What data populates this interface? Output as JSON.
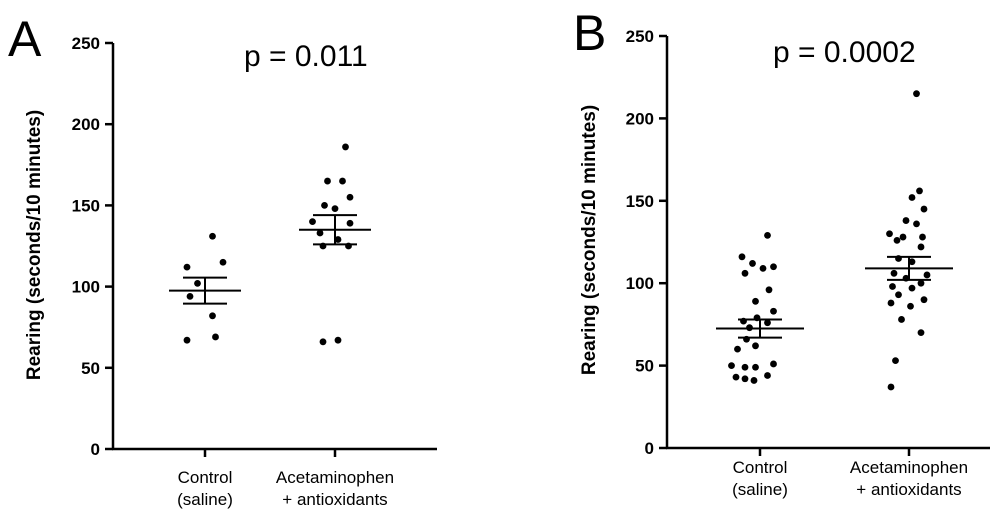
{
  "chart_data": [
    {
      "type": "scatter",
      "panel_label": "A",
      "annotation": "p = 0.011",
      "ylabel": "Rearing (seconds/10 minutes)",
      "ylim": [
        0,
        250
      ],
      "yticks": [
        0,
        50,
        100,
        150,
        200,
        250
      ],
      "categories": [
        [
          "Control",
          "(saline)"
        ],
        [
          "Acetaminophen",
          "+ antioxidants"
        ]
      ],
      "series": [
        {
          "points": [
            {
              "x": 0.05,
              "y": 131
            },
            {
              "x": -0.12,
              "y": 112
            },
            {
              "x": 0.12,
              "y": 115
            },
            {
              "x": -0.05,
              "y": 102
            },
            {
              "x": -0.1,
              "y": 94
            },
            {
              "x": 0.05,
              "y": 82
            },
            {
              "x": -0.12,
              "y": 67
            },
            {
              "x": 0.07,
              "y": 69
            }
          ],
          "mean": 97.5,
          "sem_low": 89.5,
          "sem_high": 105.5
        },
        {
          "points": [
            {
              "x": 0.07,
              "y": 186
            },
            {
              "x": -0.05,
              "y": 165
            },
            {
              "x": 0.05,
              "y": 165
            },
            {
              "x": 0.1,
              "y": 155
            },
            {
              "x": -0.07,
              "y": 150
            },
            {
              "x": 0.0,
              "y": 148
            },
            {
              "x": -0.15,
              "y": 140
            },
            {
              "x": 0.1,
              "y": 139
            },
            {
              "x": -0.1,
              "y": 133
            },
            {
              "x": 0.02,
              "y": 129
            },
            {
              "x": -0.08,
              "y": 125
            },
            {
              "x": 0.09,
              "y": 125
            },
            {
              "x": -0.08,
              "y": 66
            },
            {
              "x": 0.02,
              "y": 67
            }
          ],
          "mean": 135,
          "sem_low": 126,
          "sem_high": 144
        }
      ]
    },
    {
      "type": "scatter",
      "panel_label": "B",
      "annotation": "p = 0.0002",
      "ylabel": "Rearing (seconds/10 minutes)",
      "ylim": [
        0,
        250
      ],
      "yticks": [
        0,
        50,
        100,
        150,
        200,
        250
      ],
      "categories": [
        [
          "Control",
          "(saline)"
        ],
        [
          "Acetaminophen",
          "+ antioxidants"
        ]
      ],
      "series": [
        {
          "points": [
            {
              "x": 0.05,
              "y": 129
            },
            {
              "x": -0.12,
              "y": 116
            },
            {
              "x": -0.05,
              "y": 112
            },
            {
              "x": 0.09,
              "y": 110
            },
            {
              "x": 0.02,
              "y": 109
            },
            {
              "x": -0.1,
              "y": 106
            },
            {
              "x": 0.06,
              "y": 96
            },
            {
              "x": -0.03,
              "y": 89
            },
            {
              "x": 0.09,
              "y": 83
            },
            {
              "x": -0.02,
              "y": 79
            },
            {
              "x": -0.11,
              "y": 77
            },
            {
              "x": 0.05,
              "y": 76
            },
            {
              "x": -0.07,
              "y": 73
            },
            {
              "x": -0.09,
              "y": 66
            },
            {
              "x": -0.03,
              "y": 62
            },
            {
              "x": -0.15,
              "y": 60
            },
            {
              "x": -0.19,
              "y": 50
            },
            {
              "x": -0.1,
              "y": 49
            },
            {
              "x": -0.03,
              "y": 49
            },
            {
              "x": 0.09,
              "y": 51
            },
            {
              "x": -0.16,
              "y": 43
            },
            {
              "x": -0.1,
              "y": 42
            },
            {
              "x": 0.05,
              "y": 44
            },
            {
              "x": -0.04,
              "y": 41
            }
          ],
          "mean": 72.5,
          "sem_low": 67,
          "sem_high": 78
        },
        {
          "points": [
            {
              "x": 0.05,
              "y": 215
            },
            {
              "x": 0.07,
              "y": 156
            },
            {
              "x": 0.02,
              "y": 152
            },
            {
              "x": 0.1,
              "y": 145
            },
            {
              "x": -0.02,
              "y": 138
            },
            {
              "x": 0.05,
              "y": 136
            },
            {
              "x": -0.13,
              "y": 130
            },
            {
              "x": -0.04,
              "y": 128
            },
            {
              "x": 0.09,
              "y": 128
            },
            {
              "x": -0.08,
              "y": 126
            },
            {
              "x": 0.08,
              "y": 122
            },
            {
              "x": -0.07,
              "y": 115
            },
            {
              "x": 0.02,
              "y": 113
            },
            {
              "x": -0.1,
              "y": 106
            },
            {
              "x": 0.12,
              "y": 105
            },
            {
              "x": -0.02,
              "y": 103
            },
            {
              "x": 0.08,
              "y": 100
            },
            {
              "x": -0.11,
              "y": 98
            },
            {
              "x": 0.02,
              "y": 97
            },
            {
              "x": -0.07,
              "y": 93
            },
            {
              "x": 0.1,
              "y": 90
            },
            {
              "x": -0.12,
              "y": 88
            },
            {
              "x": 0.01,
              "y": 86
            },
            {
              "x": -0.05,
              "y": 78
            },
            {
              "x": 0.08,
              "y": 70
            },
            {
              "x": -0.09,
              "y": 53
            },
            {
              "x": -0.12,
              "y": 37
            }
          ],
          "mean": 109,
          "sem_low": 102,
          "sem_high": 116
        }
      ]
    }
  ]
}
